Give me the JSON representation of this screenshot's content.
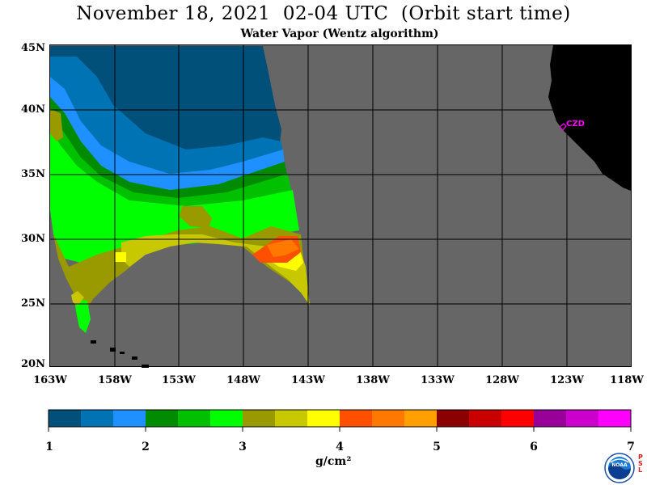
{
  "title": "November 18, 2021  02-04 UTC  (Orbit start time)",
  "subtitle": "Water Vapor (Wentz algorithm)",
  "map": {
    "lat_labels": [
      "45N",
      "40N",
      "35N",
      "30N",
      "25N",
      "20N"
    ],
    "lon_labels": [
      "163W",
      "158W",
      "153W",
      "148W",
      "143W",
      "138W",
      "133W",
      "128W",
      "123W",
      "118W"
    ],
    "station_label": "CZD",
    "extent": {
      "lon_min": -163,
      "lon_max": -118,
      "lat_min": 20,
      "lat_max": 45
    }
  },
  "colorbar": {
    "unit": "g/cm²",
    "ticks": [
      "1",
      "2",
      "3",
      "4",
      "5",
      "6",
      "7"
    ],
    "range": [
      1,
      7
    ],
    "colors": [
      "#00507a",
      "#0073b5",
      "#1e90ff",
      "#008b00",
      "#00c000",
      "#00ff00",
      "#999900",
      "#c8c800",
      "#ffff00",
      "#ff5000",
      "#ff7800",
      "#ffa000",
      "#8b0000",
      "#c80000",
      "#ff0000",
      "#990099",
      "#cc00cc",
      "#ff00ff"
    ]
  },
  "colors": {
    "land": "#000000",
    "no_data": "#666666",
    "grid": "#000000",
    "station": "#ff00ff"
  },
  "logo": {
    "text": "NOAA",
    "side_text": "PSL"
  }
}
